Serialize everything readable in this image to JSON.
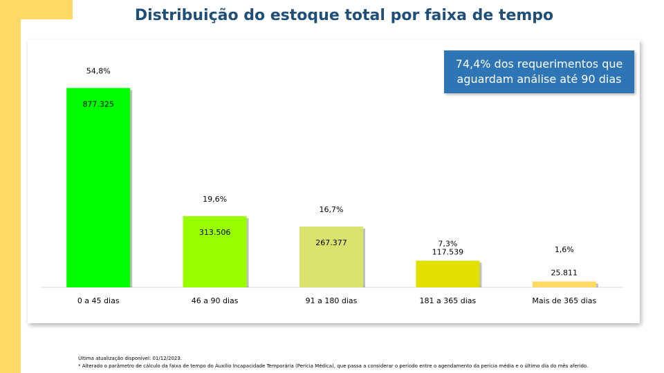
{
  "chart_data": {
    "type": "bar",
    "title": "Distribuição do estoque total por faixa de tempo",
    "categories": [
      "0 a 45 dias",
      "46 a 90 dias",
      "91 a 180 dias",
      "181 a 365 dias",
      "Mais de 365 dias"
    ],
    "values": [
      877325,
      313506,
      267377,
      117539,
      25811
    ],
    "value_labels": [
      "877.325",
      "313.506",
      "267.377",
      "117.539",
      "25.811"
    ],
    "percent_labels": [
      "54,8%",
      "19,6%",
      "16,7%",
      "7,3%",
      "1,6%"
    ],
    "colors": [
      "#00ff00",
      "#99ff00",
      "#d9e36b",
      "#e2e000",
      "#ffd966"
    ],
    "ylim": [
      0,
      1000000
    ],
    "callout": "74,4% dos requerimentos que aguardam análise até 90 dias",
    "footnotes": [
      "Última atualização disponível:  01/12/2023.",
      "* Alterado o parâmetro de cálculo da faixa de tempo do Auxílio Incapacidade Temporária (Perícia Médica), que passa a considerar o período entre o agendamento da perícia média e o último dia do mês aferido."
    ]
  }
}
